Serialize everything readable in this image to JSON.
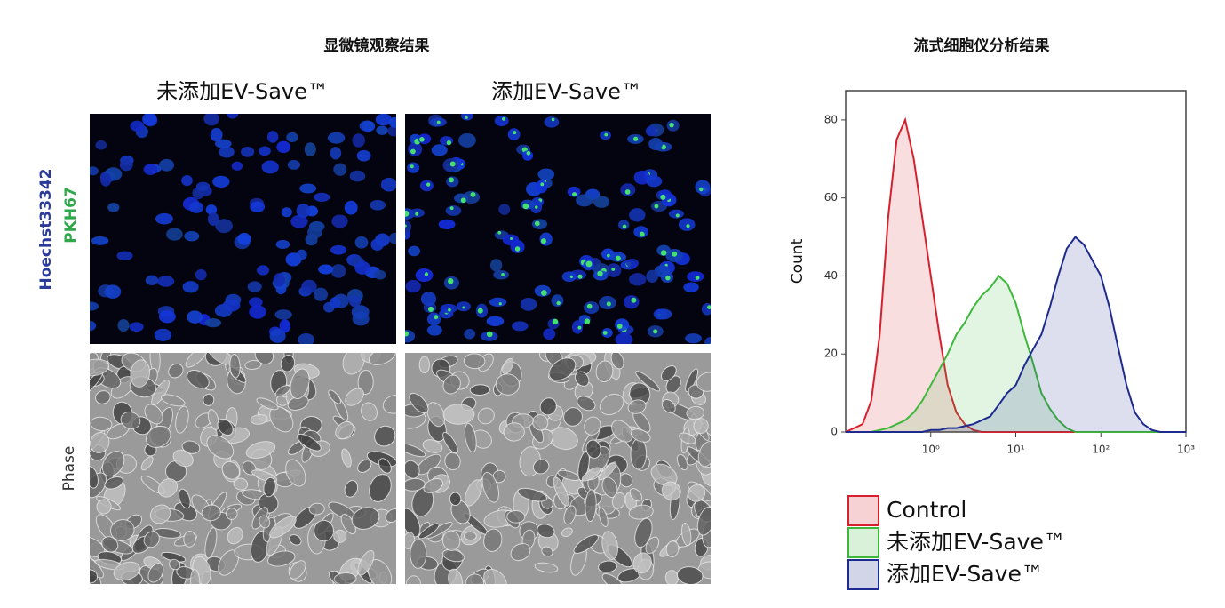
{
  "microscopy": {
    "title": "显微镜观察结果",
    "columns": [
      "未添加EV-Save™",
      "添加EV-Save™"
    ],
    "fluorescence_labels": [
      "Hoechst33342",
      "PKH67"
    ],
    "phase_label": "Phase"
  },
  "chart_data": {
    "type": "line",
    "title": "流式细胞仪分析结果",
    "y_label": "Count",
    "log_x": true,
    "filled": true,
    "legend": "below",
    "x": [
      0.1,
      0.126,
      0.158,
      0.2,
      0.251,
      0.316,
      0.398,
      0.501,
      0.631,
      0.794,
      1,
      1.26,
      1.58,
      2,
      2.51,
      3.16,
      3.98,
      5.01,
      6.31,
      7.94,
      10,
      12.6,
      15.8,
      20,
      25.1,
      31.6,
      39.8,
      50.1,
      63.1,
      79.4,
      100,
      126,
      158,
      200,
      251,
      316,
      398,
      501,
      631,
      794,
      1000
    ],
    "xlim": [
      0.1,
      1000
    ],
    "xticks": [
      {
        "value": 1,
        "label": "10⁰"
      },
      {
        "value": 10,
        "label": "10¹"
      },
      {
        "value": 100,
        "label": "10²"
      },
      {
        "value": 1000,
        "label": "10³"
      }
    ],
    "ylim": [
      0,
      87.5
    ],
    "yticks": [
      0,
      20,
      40,
      60,
      80
    ],
    "series": [
      {
        "name": "Control",
        "color": "#d7202e",
        "values": [
          0,
          1,
          2,
          8,
          25,
          55,
          75,
          80,
          70,
          55,
          40,
          25,
          12,
          5,
          2,
          0.5,
          0,
          0,
          0,
          0,
          0,
          0,
          0,
          0,
          0,
          0,
          0,
          0,
          0,
          0,
          0,
          0,
          0,
          0,
          0,
          0,
          0,
          0,
          0,
          0,
          0
        ]
      },
      {
        "name": "未添加EV-Save™",
        "color": "#3db83a",
        "values": [
          0,
          0,
          0,
          0,
          0.5,
          1,
          2,
          3,
          5,
          8,
          12,
          16,
          20,
          25,
          28,
          32,
          35,
          37,
          40,
          38,
          33,
          25,
          18,
          10,
          6,
          3,
          1,
          0,
          0,
          0,
          0,
          0,
          0,
          0,
          0,
          0,
          0,
          0,
          0,
          0,
          0
        ]
      },
      {
        "name": "添加EV-Save™",
        "color": "#1e2b8e",
        "values": [
          0,
          0,
          0,
          0,
          0,
          0,
          0,
          0,
          0,
          0,
          0.5,
          0.5,
          1,
          1,
          1.5,
          2,
          3,
          4,
          7,
          10,
          12,
          17,
          21,
          25,
          32,
          40,
          47,
          50,
          48,
          44,
          40,
          32,
          22,
          12,
          5,
          2,
          0.5,
          0,
          0,
          0,
          0
        ]
      }
    ]
  }
}
